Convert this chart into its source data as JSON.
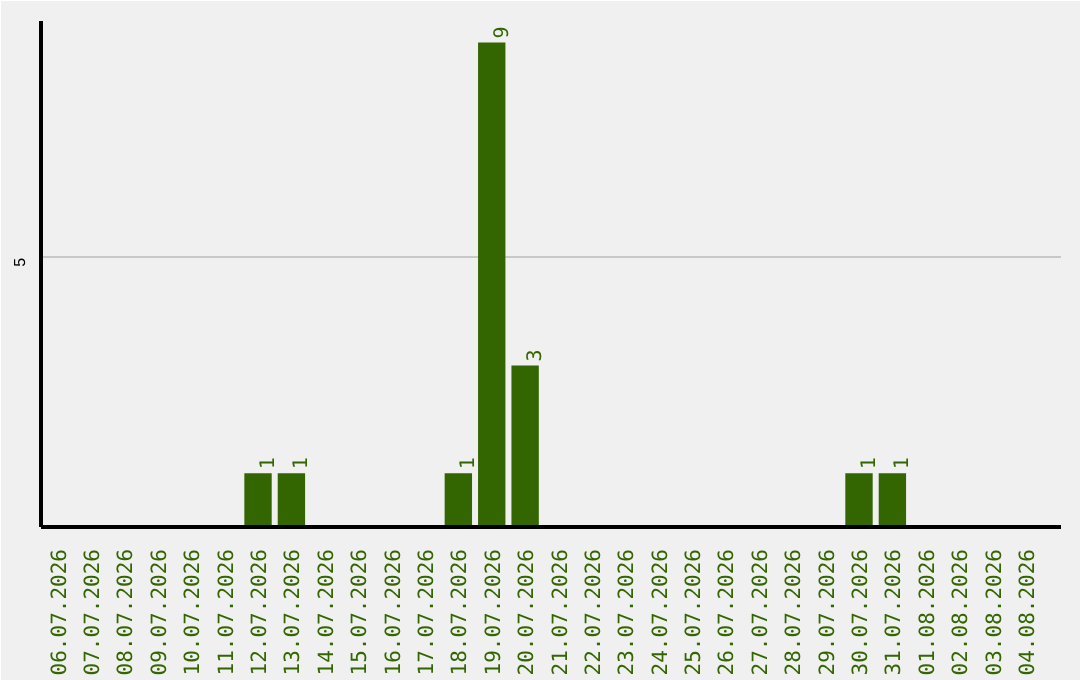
{
  "chart_data": {
    "type": "bar",
    "categories": [
      "06.07.2026",
      "07.07.2026",
      "08.07.2026",
      "09.07.2026",
      "10.07.2026",
      "11.07.2026",
      "12.07.2026",
      "13.07.2026",
      "14.07.2026",
      "15.07.2026",
      "16.07.2026",
      "17.07.2026",
      "18.07.2026",
      "19.07.2026",
      "20.07.2026",
      "21.07.2026",
      "22.07.2026",
      "23.07.2026",
      "24.07.2026",
      "25.07.2026",
      "26.07.2026",
      "27.07.2026",
      "28.07.2026",
      "29.07.2026",
      "30.07.2026",
      "31.07.2026",
      "01.08.2026",
      "02.08.2026",
      "03.08.2026",
      "04.08.2026"
    ],
    "values": [
      0,
      0,
      0,
      0,
      0,
      0,
      1,
      1,
      0,
      0,
      0,
      0,
      1,
      9,
      3,
      0,
      0,
      0,
      0,
      0,
      0,
      0,
      0,
      0,
      1,
      1,
      0,
      0,
      0,
      0
    ],
    "value_labels": [
      null,
      null,
      null,
      null,
      null,
      null,
      "1",
      "1",
      null,
      null,
      null,
      null,
      "1",
      "9",
      "3",
      null,
      null,
      null,
      null,
      null,
      null,
      null,
      null,
      null,
      "1",
      "1",
      null,
      null,
      null,
      null
    ],
    "color": "#336600",
    "ylim": [
      0,
      9.4
    ],
    "yticks": [
      5
    ],
    "grid": "y"
  }
}
